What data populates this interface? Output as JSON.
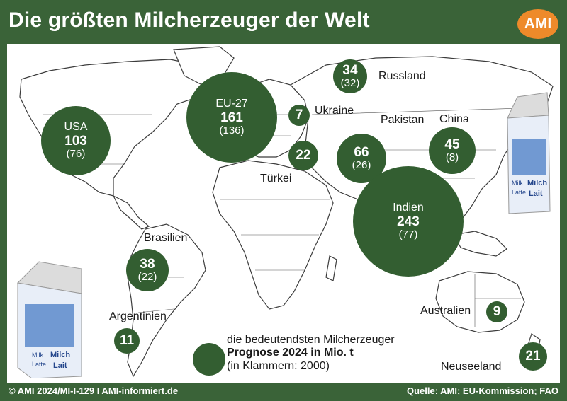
{
  "header": {
    "title": "Die größten Milcherzeuger der Welt",
    "logo_text": "AMI"
  },
  "countries": [
    {
      "id": "usa",
      "name": "USA",
      "value": "103",
      "prev": "(76)"
    },
    {
      "id": "eu27",
      "name": "EU-27",
      "value": "161",
      "prev": "(136)"
    },
    {
      "id": "russland",
      "name": "Russland",
      "value": "34",
      "prev": "(32)"
    },
    {
      "id": "ukraine",
      "name": "Ukraine",
      "value": "7",
      "prev": ""
    },
    {
      "id": "tuerkei",
      "name": "Türkei",
      "value": "22",
      "prev": ""
    },
    {
      "id": "pakistan",
      "name": "Pakistan",
      "value": "66",
      "prev": "(26)"
    },
    {
      "id": "china",
      "name": "China",
      "value": "45",
      "prev": "(8)"
    },
    {
      "id": "indien",
      "name": "Indien",
      "value": "243",
      "prev": "(77)"
    },
    {
      "id": "brasilien",
      "name": "Brasilien",
      "value": "38",
      "prev": "(22)"
    },
    {
      "id": "argentinien",
      "name": "Argentinien",
      "value": "11",
      "prev": ""
    },
    {
      "id": "australien",
      "name": "Australien",
      "value": "9",
      "prev": ""
    },
    {
      "id": "neuseeland",
      "name": "Neuseeland",
      "value": "21",
      "prev": ""
    }
  ],
  "legend": {
    "line1": "die bedeutendsten Milcherzeuger",
    "line2": "Prognose 2024 in Mio. t",
    "line3": "(in Klammern: 2000)"
  },
  "footer": {
    "left": "© AMI 2024/MI-I-129 I AMI-informiert.de",
    "right": "Quelle: AMI; EU-Kommission; FAO"
  },
  "carton": {
    "label_milk": "Milk",
    "label_milch": "Milch",
    "label_latte": "Latte",
    "label_lait": "Lait"
  },
  "colors": {
    "bubble": "#335e31",
    "frame": "#3a6338",
    "logo": "#ee8a2a"
  }
}
